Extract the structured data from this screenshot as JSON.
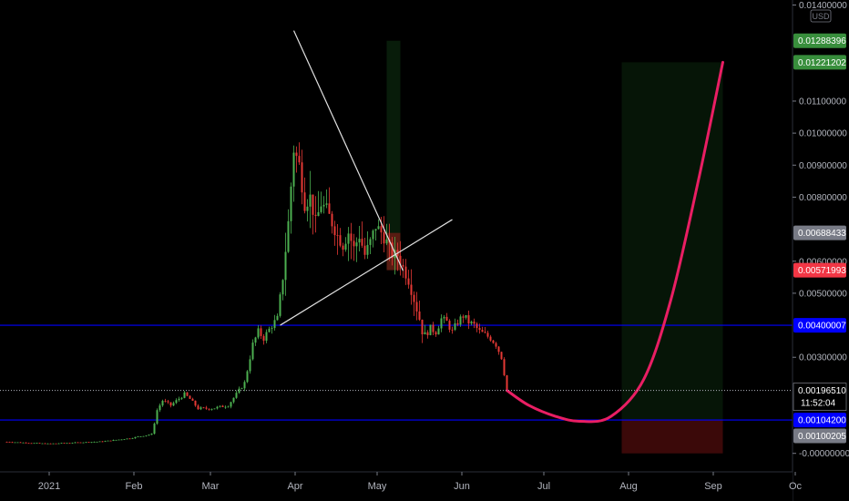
{
  "chart_data": {
    "type": "candlestick",
    "currency": "USD",
    "price_axis": {
      "range": [
        -5e-07,
        0.014
      ],
      "ticks": [
        "0.01400000",
        "0.01100000",
        "0.01000000",
        "0.00900000",
        "0.00800000",
        "0.00600000",
        "0.00500000",
        "0.00300000",
        "-0.00000000"
      ]
    },
    "time_axis": {
      "labels": [
        {
          "label": "2021",
          "t": 0.5
        },
        {
          "label": "Feb",
          "t": 31.5
        },
        {
          "label": "Mar",
          "t": 59.5
        },
        {
          "label": "Apr",
          "t": 90.5
        },
        {
          "label": "May",
          "t": 120.5
        },
        {
          "label": "Jun",
          "t": 151.5
        },
        {
          "label": "Jul",
          "t": 181.5
        },
        {
          "label": "Aug",
          "t": 212.5
        },
        {
          "label": "Sep",
          "t": 243.5
        },
        {
          "label": "Oc",
          "t": 273.5
        }
      ]
    },
    "price_path": [
      [
        -15,
        0.00036
      ],
      [
        0,
        0.0003
      ],
      [
        20,
        0.00037
      ],
      [
        30,
        0.00047
      ],
      [
        38,
        0.0006
      ],
      [
        39,
        0.00095
      ],
      [
        40,
        0.00135
      ],
      [
        42,
        0.00165
      ],
      [
        45,
        0.0015
      ],
      [
        50,
        0.00185
      ],
      [
        52,
        0.0017
      ],
      [
        55,
        0.0014
      ],
      [
        60,
        0.0014
      ],
      [
        66,
        0.0015
      ],
      [
        69,
        0.00185
      ],
      [
        72,
        0.0022
      ],
      [
        75,
        0.0034
      ],
      [
        77,
        0.0038
      ],
      [
        79,
        0.0036
      ],
      [
        82,
        0.004
      ],
      [
        84,
        0.0042
      ],
      [
        86,
        0.0055
      ],
      [
        88,
        0.0072
      ],
      [
        90,
        0.0095
      ],
      [
        92,
        0.009
      ],
      [
        94,
        0.0078
      ],
      [
        96,
        0.008
      ],
      [
        98,
        0.0072
      ],
      [
        100,
        0.0078
      ],
      [
        102,
        0.0076
      ],
      [
        104,
        0.0072
      ],
      [
        106,
        0.0068
      ],
      [
        108,
        0.0065
      ],
      [
        110,
        0.0069
      ],
      [
        112,
        0.0064
      ],
      [
        114,
        0.0068
      ],
      [
        116,
        0.0062
      ],
      [
        118,
        0.0066
      ],
      [
        120,
        0.0071
      ],
      [
        122,
        0.0069
      ],
      [
        124,
        0.0066
      ],
      [
        126,
        0.0062
      ],
      [
        128,
        0.0062
      ],
      [
        130,
        0.0058
      ],
      [
        132,
        0.0054
      ],
      [
        134,
        0.0048
      ],
      [
        136,
        0.0042
      ],
      [
        137,
        0.0038
      ],
      [
        138,
        0.0037
      ],
      [
        140,
        0.0039
      ],
      [
        142,
        0.0038
      ],
      [
        144,
        0.0042
      ],
      [
        146,
        0.0041
      ],
      [
        148,
        0.0038
      ],
      [
        150,
        0.0041
      ],
      [
        152,
        0.0043
      ],
      [
        154,
        0.0041
      ],
      [
        156,
        0.004
      ],
      [
        158,
        0.0038
      ],
      [
        160,
        0.0037
      ],
      [
        162,
        0.0036
      ],
      [
        164,
        0.0034
      ],
      [
        166,
        0.003
      ],
      [
        168,
        0.002
      ]
    ],
    "last_price": "0.00196510",
    "countdown": "11:52:04",
    "price_badges": [
      {
        "label": "0.01288396",
        "value": 0.01288396,
        "color": "#388e3c"
      },
      {
        "label": "0.01221202",
        "value": 0.01221202,
        "color": "#388e3c"
      },
      {
        "label": "0.00688433",
        "value": 0.00688433,
        "color": "#787b86"
      },
      {
        "label": "0.00571993",
        "value": 0.00571993,
        "color": "#f23645"
      },
      {
        "label": "0.00400007",
        "value": 0.00400007,
        "color": "#0000ff"
      },
      {
        "label": "0.00104200",
        "value": 0.001042,
        "color": "#0000ff"
      },
      {
        "label": "0.00100205",
        "value": 0.00100205,
        "color": "#787b86"
      }
    ],
    "horizontal_lines": [
      {
        "value": 0.00400007,
        "color": "#0000ff"
      },
      {
        "value": 0.001042,
        "color": "#0000ff"
      }
    ],
    "projection_curve": {
      "color": "#e91e63",
      "points": [
        [
          168,
          0.0019651
        ],
        [
          176,
          0.0015
        ],
        [
          186,
          0.00115
        ],
        [
          195,
          0.001
        ],
        [
          206,
          0.00115
        ],
        [
          218,
          0.0023
        ],
        [
          228,
          0.0048
        ],
        [
          238,
          0.0085
        ],
        [
          247,
          0.01221202
        ]
      ]
    },
    "trade_box": {
      "t_start": 210,
      "t_end": 247,
      "entry": 0.001042,
      "target": 0.01221202,
      "stop": -5e-07,
      "profit_color": "#1b5e20",
      "loss_color": "#b71c1c"
    },
    "small_trade_box": {
      "t_start": 124,
      "t_end": 129,
      "entry": 0.00571993,
      "target": 0.01288396,
      "stop": 0.00688433
    },
    "trend_lines": [
      [
        [
          90,
          0.0132
        ],
        [
          130,
          0.0057
        ]
      ],
      [
        [
          85,
          0.004
        ],
        [
          148,
          0.0073
        ]
      ]
    ]
  }
}
